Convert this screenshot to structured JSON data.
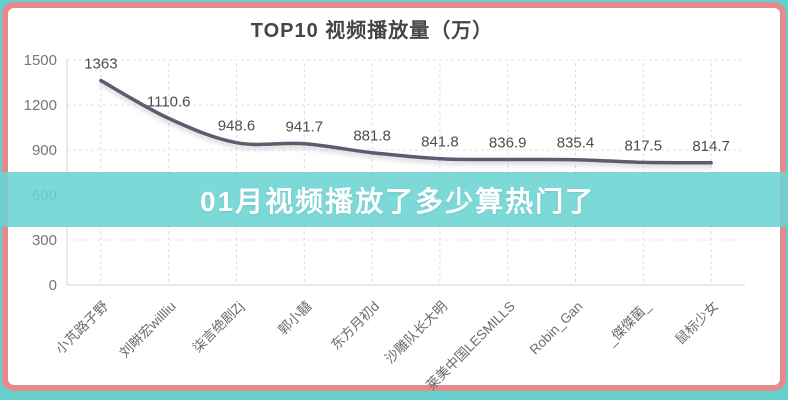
{
  "page": {
    "background_color": "#65cfcc",
    "card_border_color": "#e58a8c",
    "card_background": "#ffffff"
  },
  "overlay": {
    "text": "01月视频播放了多少算热门了",
    "background_color": "#68d3d1",
    "text_color": "#ffffff"
  },
  "chart_data": {
    "type": "line",
    "title": "TOP10 视频播放量（万）",
    "categories": [
      "小芃路子野",
      "刘畊宏willliu",
      "柒言绝剧Zj",
      "郭小囍",
      "东方月初d",
      "沙雕队长大明",
      "莱美中国LESMILLS",
      "Robin_Gan",
      "_傑傑菌_",
      "鼠标少女"
    ],
    "values": [
      1363,
      1110.6,
      948.6,
      941.7,
      881.8,
      841.8,
      836.9,
      835.4,
      817.5,
      814.7
    ],
    "data_labels": [
      "1363",
      "1110.6",
      "948.6",
      "941.7",
      "881.8",
      "841.8",
      "836.9",
      "835.4",
      "817.5",
      "814.7"
    ],
    "yticks": [
      0,
      300,
      600,
      900,
      1200,
      1500
    ],
    "ylim": [
      0,
      1500
    ],
    "xlabel": "",
    "ylabel": "",
    "legend": "none",
    "grid": true,
    "line_color": "#5c5b6e",
    "label_color": "#4d4d4d",
    "axis_text_color": "#767676"
  }
}
